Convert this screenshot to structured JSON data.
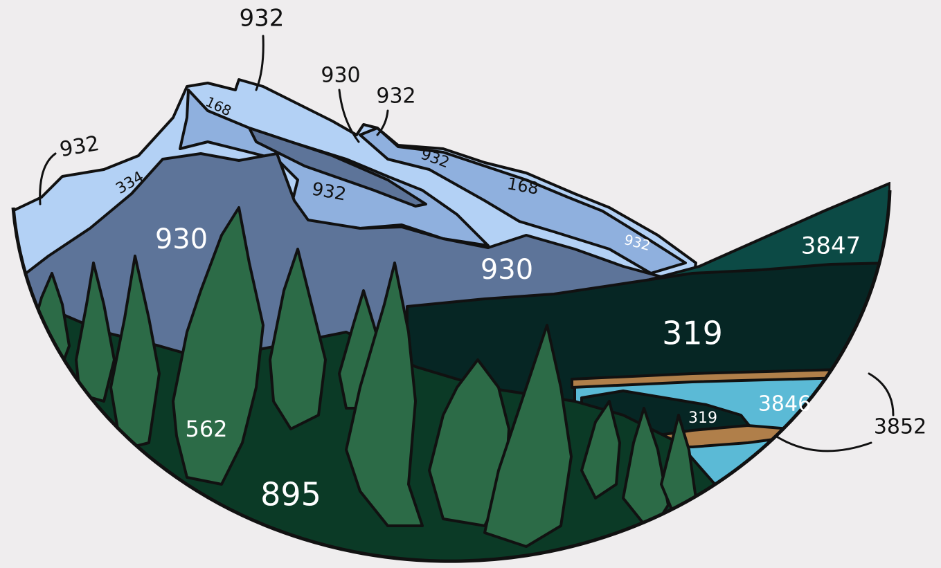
{
  "labels": [
    "932",
    "930",
    "932",
    "932",
    "168",
    "334",
    "932",
    "932",
    "168",
    "932",
    "930",
    "930",
    "3847",
    "319",
    "3846",
    "319",
    "3852",
    "562",
    "895"
  ]
}
